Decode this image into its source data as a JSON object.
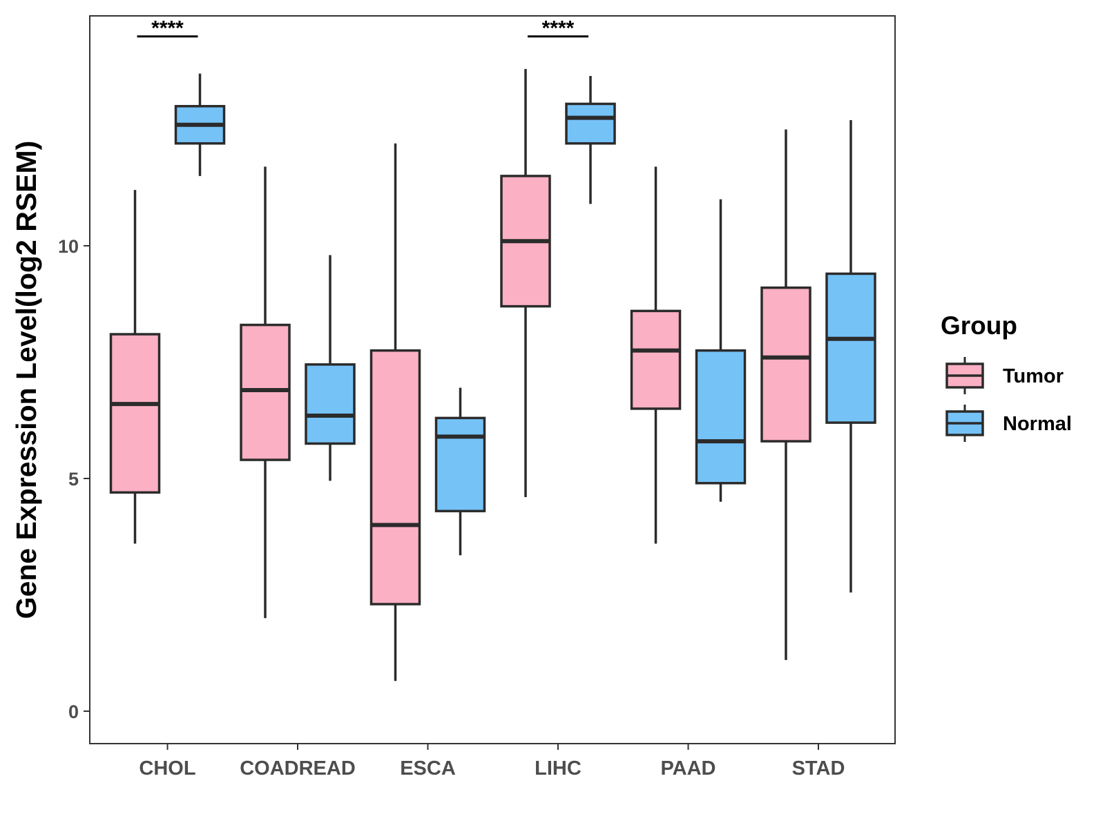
{
  "chart_data": {
    "type": "boxplot",
    "ylabel": "Gene Expression Level(log2 RSEM)",
    "xlabel": "",
    "ylim": [
      -0.7,
      15
    ],
    "yticks": [
      0,
      5,
      10
    ],
    "ytick_labels": [
      "0",
      "5",
      "10"
    ],
    "categories": [
      "CHOL",
      "COADREAD",
      "ESCA",
      "LIHC",
      "PAAD",
      "STAD"
    ],
    "legend": {
      "title": "Group",
      "position": "right",
      "entries": [
        {
          "label": "Tumor",
          "color": "#FBB0C3"
        },
        {
          "label": "Normal",
          "color": "#75C2F7"
        }
      ]
    },
    "series": [
      {
        "name": "Tumor",
        "color": "#FBB0C3",
        "boxes": [
          {
            "category": "CHOL",
            "min": 3.6,
            "q1": 4.7,
            "median": 6.6,
            "q3": 8.1,
            "max": 11.2
          },
          {
            "category": "COADREAD",
            "min": 2.0,
            "q1": 5.4,
            "median": 6.9,
            "q3": 8.3,
            "max": 11.7
          },
          {
            "category": "ESCA",
            "min": 0.65,
            "q1": 2.3,
            "median": 4.0,
            "q3": 7.75,
            "max": 12.2
          },
          {
            "category": "LIHC",
            "min": 4.6,
            "q1": 8.7,
            "median": 10.1,
            "q3": 11.5,
            "max": 13.8
          },
          {
            "category": "PAAD",
            "min": 3.6,
            "q1": 6.5,
            "median": 7.75,
            "q3": 8.6,
            "max": 11.7
          },
          {
            "category": "STAD",
            "min": 1.1,
            "q1": 5.8,
            "median": 7.6,
            "q3": 9.1,
            "max": 12.5
          }
        ]
      },
      {
        "name": "Normal",
        "color": "#75C2F7",
        "boxes": [
          {
            "category": "CHOL",
            "min": 11.5,
            "q1": 12.2,
            "median": 12.6,
            "q3": 13.0,
            "max": 13.7
          },
          {
            "category": "COADREAD",
            "min": 4.95,
            "q1": 5.75,
            "median": 6.35,
            "q3": 7.45,
            "max": 9.8
          },
          {
            "category": "ESCA",
            "min": 3.35,
            "q1": 4.3,
            "median": 5.9,
            "q3": 6.3,
            "max": 6.95
          },
          {
            "category": "LIHC",
            "min": 10.9,
            "q1": 12.2,
            "median": 12.75,
            "q3": 13.05,
            "max": 13.65
          },
          {
            "category": "PAAD",
            "min": 4.5,
            "q1": 4.9,
            "median": 5.8,
            "q3": 7.75,
            "max": 11.0
          },
          {
            "category": "STAD",
            "min": 2.55,
            "q1": 6.2,
            "median": 8.0,
            "q3": 9.4,
            "max": 12.7
          }
        ]
      }
    ],
    "annotations": [
      {
        "category": "CHOL",
        "text": "****",
        "y": 14.5
      },
      {
        "category": "LIHC",
        "text": "****",
        "y": 14.5
      }
    ]
  }
}
